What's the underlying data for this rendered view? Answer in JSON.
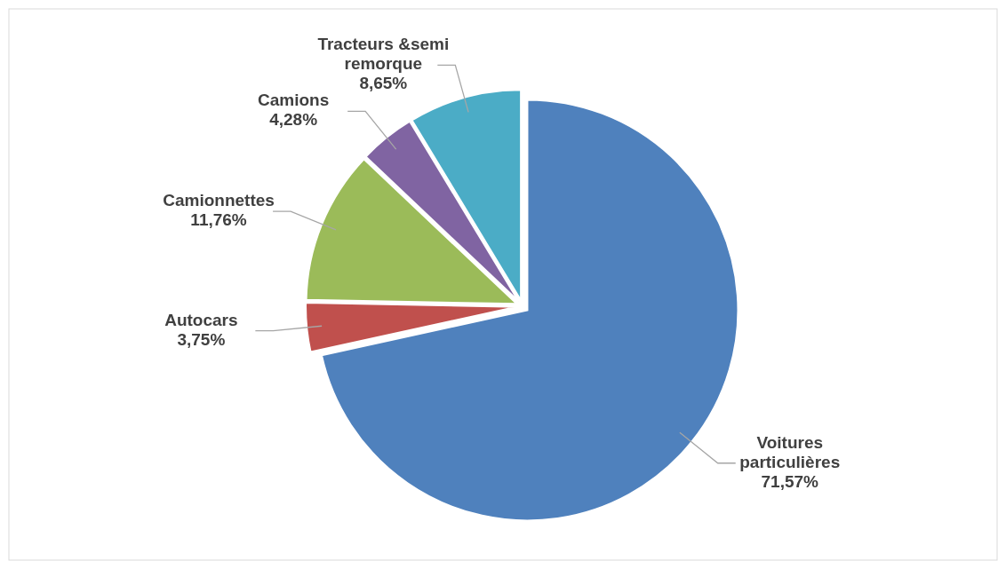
{
  "chart_data": {
    "type": "pie",
    "categories": [
      "Voitures particulières",
      "Autocars",
      "Camionnettes",
      "Camions",
      "Tracteurs &semi remorque"
    ],
    "values": [
      71.57,
      3.75,
      11.76,
      4.28,
      8.65
    ],
    "colors": [
      "#4f81bd",
      "#c0504d",
      "#9bbb59",
      "#8064a2",
      "#4bacc6"
    ],
    "value_labels": [
      "71,57%",
      "3,75%",
      "11,76%",
      "4,28%",
      "8,65%"
    ]
  }
}
